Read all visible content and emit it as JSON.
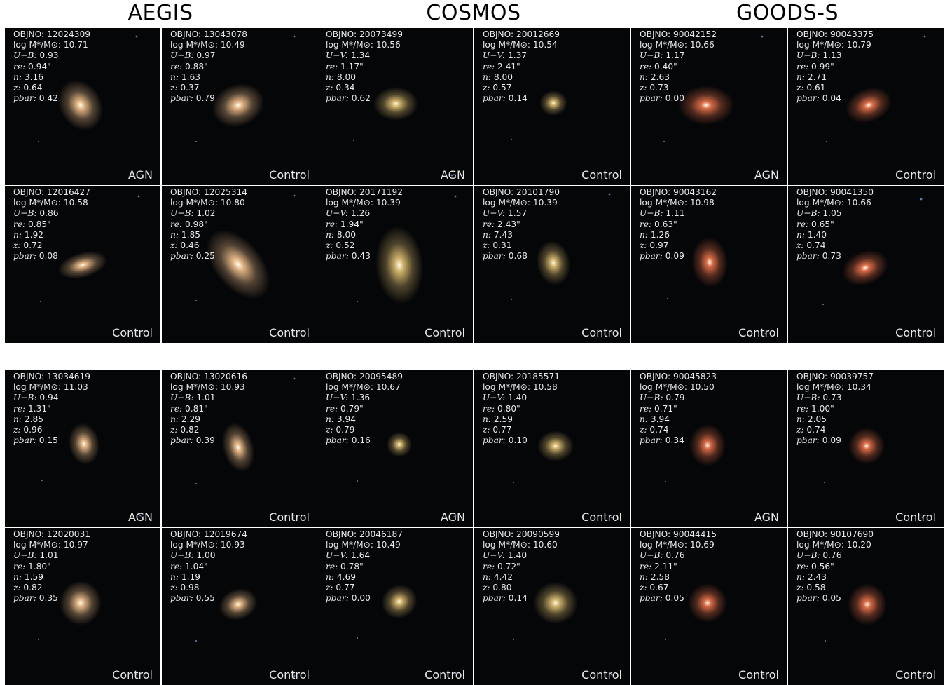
{
  "surveys": [
    "AEGIS",
    "COSMOS",
    "GOODS-S"
  ],
  "field_labels": {
    "objno": "OBJNO:",
    "mass": "log M*/M⊙:",
    "color_aegis": "U−B:",
    "color_cosmos": "U−V:",
    "color_goods": "U−B:",
    "re": "re:",
    "n": "n:",
    "z": "z:",
    "pbar": "pbar:"
  },
  "colors": {
    "aegis_glow": "#e7b887",
    "cosmos_glow": "#d7b96f",
    "goods_glow": "#e26f49",
    "background": "#050608",
    "text": "#e9e9e9"
  },
  "panels": [
    {
      "survey": "AEGIS",
      "objno": "12024309",
      "mass": "10.71",
      "color": "0.93",
      "re": "0.94\"",
      "n": "3.16",
      "z": "0.64",
      "pbar": "0.42",
      "tag": "AGN"
    },
    {
      "survey": "AEGIS",
      "objno": "13043078",
      "mass": "10.49",
      "color": "0.97",
      "re": "0.88\"",
      "n": "1.63",
      "z": "0.37",
      "pbar": "0.79",
      "tag": "Control"
    },
    {
      "survey": "COSMOS",
      "objno": "20073499",
      "mass": "10.56",
      "color": "1.34",
      "re": "1.17\"",
      "n": "8.00",
      "z": "0.34",
      "pbar": "0.62",
      "tag": "AGN"
    },
    {
      "survey": "COSMOS",
      "objno": "20012669",
      "mass": "10.54",
      "color": "1.37",
      "re": "2.41\"",
      "n": "8.00",
      "z": "0.57",
      "pbar": "0.14",
      "tag": "Control"
    },
    {
      "survey": "GOODS-S",
      "objno": "90042152",
      "mass": "10.66",
      "color": "1.17",
      "re": "0.40\"",
      "n": "2.63",
      "z": "0.73",
      "pbar": "0.00",
      "tag": "AGN"
    },
    {
      "survey": "GOODS-S",
      "objno": "90043375",
      "mass": "10.79",
      "color": "1.13",
      "re": "0.99\"",
      "n": "2.71",
      "z": "0.61",
      "pbar": "0.04",
      "tag": "Control"
    },
    {
      "survey": "AEGIS",
      "objno": "12016427",
      "mass": "10.58",
      "color": "0.86",
      "re": "0.85\"",
      "n": "1.92",
      "z": "0.72",
      "pbar": "0.08",
      "tag": "Control"
    },
    {
      "survey": "AEGIS",
      "objno": "12025314",
      "mass": "10.80",
      "color": "1.02",
      "re": "0.98\"",
      "n": "1.85",
      "z": "0.46",
      "pbar": "0.25",
      "tag": "Control"
    },
    {
      "survey": "COSMOS",
      "objno": "20171192",
      "mass": "10.39",
      "color": "1.26",
      "re": "1.94\"",
      "n": "8.00",
      "z": "0.52",
      "pbar": "0.43",
      "tag": "Control"
    },
    {
      "survey": "COSMOS",
      "objno": "20101790",
      "mass": "10.39",
      "color": "1.57",
      "re": "2.43\"",
      "n": "7.43",
      "z": "0.31",
      "pbar": "0.68",
      "tag": "Control"
    },
    {
      "survey": "GOODS-S",
      "objno": "90043162",
      "mass": "10.98",
      "color": "1.11",
      "re": "0.63\"",
      "n": "1.26",
      "z": "0.97",
      "pbar": "0.09",
      "tag": "Control"
    },
    {
      "survey": "GOODS-S",
      "objno": "90041350",
      "mass": "10.66",
      "color": "1.05",
      "re": "0.65\"",
      "n": "1.40",
      "z": "0.74",
      "pbar": "0.73",
      "tag": "Control"
    },
    {
      "survey": "AEGIS",
      "objno": "13034619",
      "mass": "11.03",
      "color": "0.94",
      "re": "1.31\"",
      "n": "2.85",
      "z": "0.96",
      "pbar": "0.15",
      "tag": "AGN"
    },
    {
      "survey": "AEGIS",
      "objno": "13020616",
      "mass": "10.93",
      "color": "1.01",
      "re": "0.81\"",
      "n": "2.29",
      "z": "0.82",
      "pbar": "0.39",
      "tag": "Control"
    },
    {
      "survey": "COSMOS",
      "objno": "20095489",
      "mass": "10.67",
      "color": "1.36",
      "re": "0.79\"",
      "n": "3.94",
      "z": "0.79",
      "pbar": "0.16",
      "tag": "AGN"
    },
    {
      "survey": "COSMOS",
      "objno": "20185571",
      "mass": "10.58",
      "color": "1.40",
      "re": "0.80\"",
      "n": "2.59",
      "z": "0.77",
      "pbar": "0.10",
      "tag": "Control"
    },
    {
      "survey": "GOODS-S",
      "objno": "90045823",
      "mass": "10.50",
      "color": "0.79",
      "re": "0.71\"",
      "n": "3.94",
      "z": "0.74",
      "pbar": "0.34",
      "tag": "AGN"
    },
    {
      "survey": "GOODS-S",
      "objno": "90039757",
      "mass": "10.34",
      "color": "0.73",
      "re": "1.00\"",
      "n": "2.05",
      "z": "0.74",
      "pbar": "0.09",
      "tag": "Control"
    },
    {
      "survey": "AEGIS",
      "objno": "12020031",
      "mass": "10.97",
      "color": "1.01",
      "re": "1.80\"",
      "n": "1.59",
      "z": "0.82",
      "pbar": "0.35",
      "tag": "Control"
    },
    {
      "survey": "AEGIS",
      "objno": "12019674",
      "mass": "10.93",
      "color": "1.00",
      "re": "1.04\"",
      "n": "1.19",
      "z": "0.98",
      "pbar": "0.55",
      "tag": "Control"
    },
    {
      "survey": "COSMOS",
      "objno": "20046187",
      "mass": "10.49",
      "color": "1.64",
      "re": "0.78\"",
      "n": "4.69",
      "z": "0.77",
      "pbar": "0.00",
      "tag": "Control"
    },
    {
      "survey": "COSMOS",
      "objno": "20090599",
      "mass": "10.60",
      "color": "1.40",
      "re": "0.72\"",
      "n": "4.42",
      "z": "0.80",
      "pbar": "0.14",
      "tag": "Control"
    },
    {
      "survey": "GOODS-S",
      "objno": "90044415",
      "mass": "10.69",
      "color": "0.76",
      "re": "2.11\"",
      "n": "2.58",
      "z": "0.67",
      "pbar": "0.05",
      "tag": "Control"
    },
    {
      "survey": "GOODS-S",
      "objno": "90107690",
      "mass": "10.20",
      "color": "0.76",
      "re": "0.56\"",
      "n": "2.43",
      "z": "0.58",
      "pbar": "0.05",
      "tag": "Control"
    }
  ]
}
